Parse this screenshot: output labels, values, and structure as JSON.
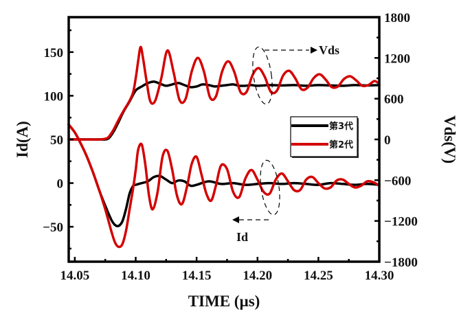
{
  "chart_data": {
    "type": "line",
    "title": "",
    "xlabel": "TIME (µs)",
    "ylabel_left": "Id(A)",
    "ylabel_right": "Vds(V)",
    "xlim": [
      14.045,
      14.3
    ],
    "ylim_left": [
      -90,
      190
    ],
    "ylim_right": [
      -1800,
      1800
    ],
    "x_ticks": [
      14.05,
      14.1,
      14.15,
      14.2,
      14.25,
      14.3
    ],
    "x_tick_labels": [
      "14.05",
      "14.10",
      "14.15",
      "14.20",
      "14.25",
      "14.30"
    ],
    "y_left_ticks": [
      -50,
      0,
      50,
      100,
      150
    ],
    "y_left_tick_labels": [
      "−50",
      "0",
      "50",
      "100",
      "150"
    ],
    "y_right_ticks": [
      -1800,
      -1200,
      -600,
      0,
      600,
      1200,
      1800
    ],
    "y_right_tick_labels": [
      "−1800",
      "−1200",
      "−600",
      "0",
      "600",
      "1200",
      "1800"
    ],
    "grid": false,
    "legend": {
      "position": "center-right",
      "entries": [
        {
          "label": "第3代",
          "color": "#000000"
        },
        {
          "label": "第2代",
          "color": "#d40000"
        }
      ]
    },
    "annotations": [
      {
        "text": "Vds",
        "arrow": "right",
        "target": "Vds curves (right axis)"
      },
      {
        "text": "Id",
        "arrow": "left",
        "target": "Id curves (left axis)"
      }
    ],
    "series": [
      {
        "name": "第3代 Vds",
        "axis": "right",
        "color": "#000000",
        "x": [
          14.045,
          14.05,
          14.06,
          14.07,
          14.075,
          14.078,
          14.082,
          14.086,
          14.09,
          14.095,
          14.1,
          14.105,
          14.11,
          14.115,
          14.12,
          14.125,
          14.13,
          14.135,
          14.14,
          14.145,
          14.15,
          14.155,
          14.16,
          14.165,
          14.17,
          14.175,
          14.18,
          14.185,
          14.19,
          14.195,
          14.2,
          14.21,
          14.22,
          14.23,
          14.24,
          14.25,
          14.26,
          14.27,
          14.28,
          14.29,
          14.3
        ],
        "y": [
          0,
          0,
          0,
          0,
          0,
          20,
          120,
          260,
          410,
          560,
          720,
          780,
          830,
          850,
          820,
          790,
          810,
          830,
          800,
          770,
          780,
          810,
          800,
          780,
          790,
          800,
          810,
          790,
          790,
          800,
          790,
          800,
          795,
          800,
          790,
          800,
          795,
          790,
          800,
          795,
          800
        ]
      },
      {
        "name": "第2代 Vds",
        "axis": "right",
        "color": "#d40000",
        "x": [
          14.045,
          14.05,
          14.06,
          14.07,
          14.075,
          14.078,
          14.082,
          14.086,
          14.09,
          14.095,
          14.098,
          14.1,
          14.102,
          14.104,
          14.106,
          14.109,
          14.112,
          14.116,
          14.121,
          14.126,
          14.131,
          14.136,
          14.141,
          14.146,
          14.151,
          14.156,
          14.161,
          14.166,
          14.171,
          14.176,
          14.181,
          14.186,
          14.191,
          14.196,
          14.201,
          14.206,
          14.211,
          14.216,
          14.221,
          14.226,
          14.231,
          14.236,
          14.241,
          14.246,
          14.251,
          14.256,
          14.261,
          14.266,
          14.271,
          14.276,
          14.281,
          14.286,
          14.291,
          14.296,
          14.3
        ],
        "y": [
          0,
          0,
          0,
          0,
          10,
          40,
          150,
          290,
          420,
          570,
          700,
          900,
          1150,
          1360,
          1200,
          850,
          560,
          570,
          900,
          1310,
          1000,
          580,
          600,
          1000,
          1200,
          1000,
          620,
          640,
          1000,
          1150,
          990,
          700,
          700,
          950,
          1050,
          920,
          700,
          720,
          940,
          1010,
          900,
          740,
          760,
          900,
          960,
          880,
          770,
          780,
          890,
          930,
          870,
          790,
          800,
          860,
          820
        ]
      },
      {
        "name": "第3代 Id",
        "axis": "left",
        "color": "#000000",
        "x": [
          14.045,
          14.05,
          14.055,
          14.06,
          14.065,
          14.07,
          14.075,
          14.08,
          14.083,
          14.086,
          14.089,
          14.092,
          14.095,
          14.098,
          14.1,
          14.105,
          14.11,
          14.115,
          14.12,
          14.125,
          14.13,
          14.135,
          14.14,
          14.145,
          14.15,
          14.16,
          14.17,
          14.18,
          14.19,
          14.2,
          14.21,
          14.22,
          14.23,
          14.24,
          14.25,
          14.26,
          14.27,
          14.28,
          14.29,
          14.3
        ],
        "y": [
          67,
          58,
          45,
          30,
          12,
          -8,
          -26,
          -42,
          -48,
          -49,
          -44,
          -30,
          -12,
          -3,
          -2,
          0,
          2,
          7,
          8,
          4,
          0,
          3,
          2,
          -3,
          -2,
          2,
          -1,
          0,
          -2,
          -1,
          0,
          -1,
          0,
          -1,
          -2,
          0,
          -1,
          -2,
          -1,
          -2
        ]
      },
      {
        "name": "第2代 Id",
        "axis": "left",
        "color": "#d40000",
        "x": [
          14.045,
          14.05,
          14.055,
          14.06,
          14.065,
          14.07,
          14.075,
          14.08,
          14.083,
          14.086,
          14.089,
          14.092,
          14.095,
          14.098,
          14.1,
          14.102,
          14.105,
          14.108,
          14.111,
          14.114,
          14.118,
          14.122,
          14.126,
          14.13,
          14.134,
          14.138,
          14.142,
          14.146,
          14.15,
          14.154,
          14.158,
          14.162,
          14.166,
          14.17,
          14.175,
          14.18,
          14.185,
          14.19,
          14.195,
          14.2,
          14.205,
          14.21,
          14.215,
          14.22,
          14.225,
          14.23,
          14.235,
          14.24,
          14.245,
          14.25,
          14.255,
          14.26,
          14.265,
          14.27,
          14.275,
          14.28,
          14.285,
          14.29,
          14.295,
          14.3
        ],
        "y": [
          67,
          58,
          45,
          30,
          12,
          -8,
          -30,
          -55,
          -68,
          -73,
          -70,
          -55,
          -30,
          -5,
          15,
          38,
          44,
          20,
          -15,
          -30,
          -10,
          30,
          37,
          15,
          -15,
          -24,
          -5,
          22,
          30,
          10,
          -12,
          -20,
          -2,
          20,
          16,
          -10,
          -16,
          5,
          15,
          4,
          -10,
          -12,
          4,
          11,
          2,
          -8,
          -8,
          4,
          7,
          0,
          -6,
          -5,
          3,
          4,
          -1,
          -5,
          -3,
          2,
          1,
          -3
        ]
      }
    ]
  }
}
